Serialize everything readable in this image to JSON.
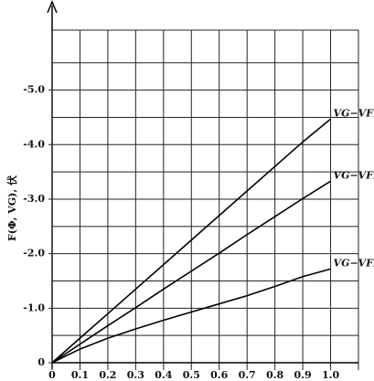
{
  "chart_data": {
    "type": "line",
    "ylabel": "F(Φ, VG), 伏",
    "x": [
      0,
      0.1,
      0.2,
      0.3,
      0.4,
      0.5,
      0.6,
      0.7,
      0.8,
      0.9,
      1.0
    ],
    "series": [
      {
        "name": "VG−VFB",
        "color": "#000000",
        "values": [
          0,
          -0.45,
          -0.9,
          -1.35,
          -1.8,
          -2.25,
          -2.7,
          -3.15,
          -3.6,
          -4.05,
          -4.47
        ]
      },
      {
        "name": "VG−VFB",
        "color": "#000000",
        "values": [
          0,
          -0.34,
          -0.68,
          -1.01,
          -1.35,
          -1.68,
          -2.01,
          -2.35,
          -2.68,
          -3.01,
          -3.33
        ]
      },
      {
        "name": "VG−VFB",
        "color": "#000000",
        "values": [
          0,
          -0.25,
          -0.45,
          -0.62,
          -0.78,
          -0.93,
          -1.08,
          -1.23,
          -1.4,
          -1.58,
          -1.72
        ]
      }
    ],
    "xlim": [
      0,
      1.1
    ],
    "ylim": [
      0,
      -6.1
    ],
    "xticks": [
      0,
      0.1,
      0.2,
      0.3,
      0.4,
      0.5,
      0.6,
      0.7,
      0.8,
      0.9,
      {
        "value": 1,
        "label": "1.0"
      }
    ],
    "yticks": [
      0,
      {
        "value": -1,
        "label": "-1.0"
      },
      {
        "value": -2,
        "label": "-2.0"
      },
      {
        "value": -3,
        "label": "-3.0"
      },
      {
        "value": -4,
        "label": "-4.0"
      },
      {
        "value": -5,
        "label": "-5.0"
      }
    ],
    "minor_yticks": [
      -0.5,
      -1.5,
      -2.5,
      -3.5,
      -4.5,
      -5.5
    ],
    "grid": true
  }
}
